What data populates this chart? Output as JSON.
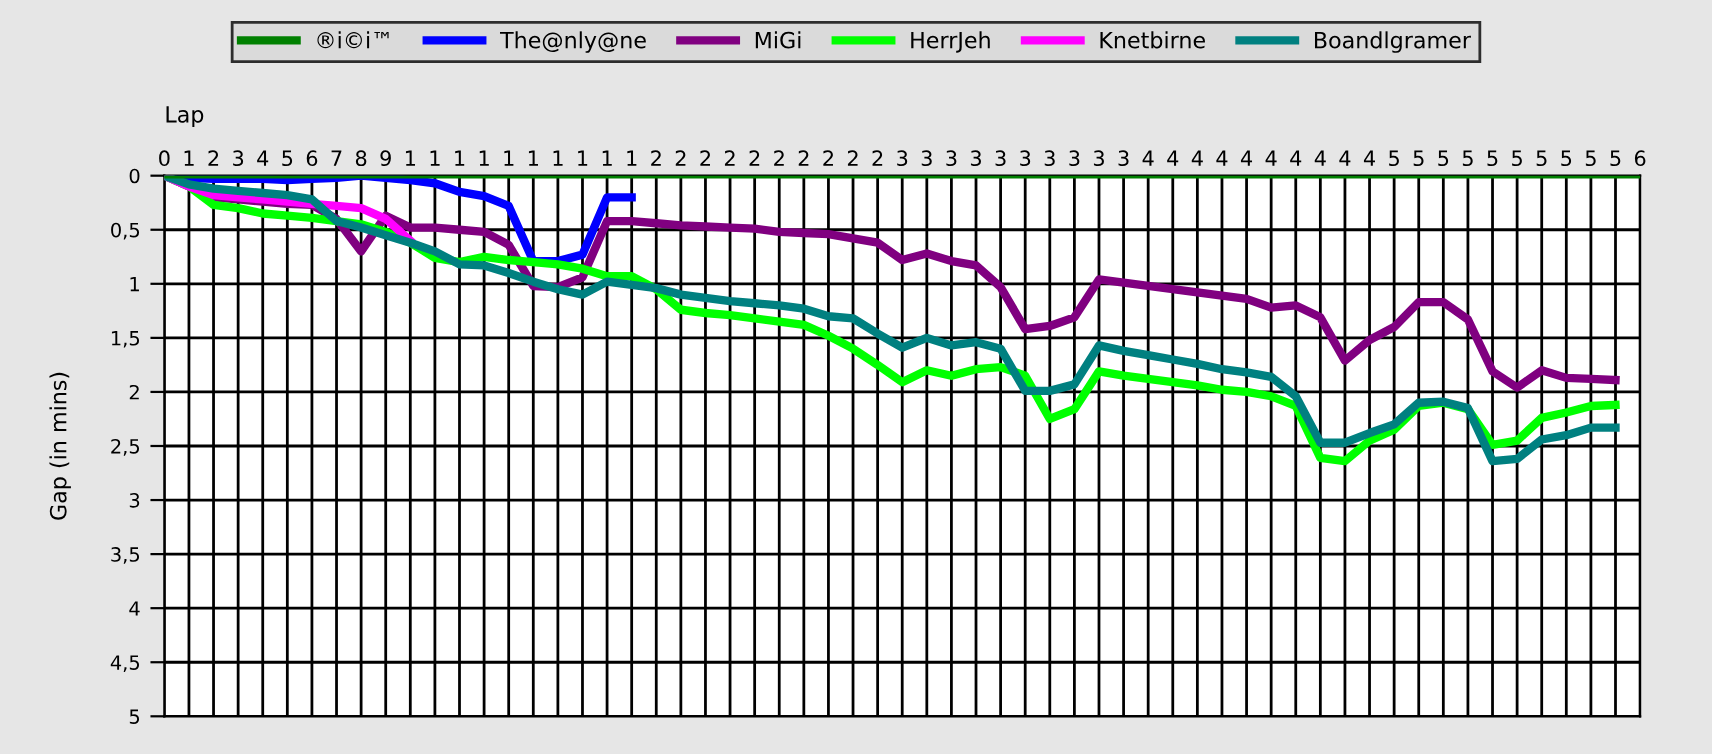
{
  "chart_data": {
    "type": "line",
    "xlabel": "Lap",
    "ylabel": "Gap (in mins)",
    "legend": "top",
    "grid": true,
    "marker": "none",
    "line_style": "solid",
    "ylim": [
      5,
      0
    ],
    "categories": [
      "0",
      "1",
      "2",
      "3",
      "4",
      "5",
      "6",
      "7",
      "8",
      "9",
      "1",
      "1",
      "1",
      "1",
      "1",
      "1",
      "1",
      "1",
      "1",
      "1",
      "2",
      "2",
      "2",
      "2",
      "2",
      "2",
      "2",
      "2",
      "2",
      "2",
      "3",
      "3",
      "3",
      "3",
      "3",
      "3",
      "3",
      "3",
      "3",
      "3",
      "4",
      "4",
      "4",
      "4",
      "4",
      "4",
      "4",
      "4",
      "4",
      "4",
      "5",
      "5",
      "5",
      "5",
      "5",
      "5",
      "5",
      "5",
      "5",
      "5",
      "6"
    ],
    "yticks": [
      0,
      {
        "value": 0.5,
        "label": "0,5"
      },
      1,
      {
        "value": 1.5,
        "label": "1,5"
      },
      2,
      {
        "value": 2.5,
        "label": "2,5"
      },
      3,
      {
        "value": 3.5,
        "label": "3,5"
      },
      4,
      {
        "value": 4.5,
        "label": "4,5"
      },
      5
    ],
    "series": [
      {
        "name": "®i©i™",
        "color": "#008000",
        "values": [
          0,
          0,
          0,
          0,
          0,
          0,
          0,
          0,
          0,
          0,
          0,
          0,
          0,
          0,
          0,
          0,
          0,
          0,
          0,
          0,
          0,
          0,
          0,
          0,
          0,
          0,
          0,
          0,
          0,
          0,
          0,
          0,
          0,
          0,
          0,
          0,
          0,
          0,
          0,
          0,
          0,
          0,
          0,
          0,
          0,
          0,
          0,
          0,
          0,
          0,
          0,
          0,
          0,
          0,
          0,
          0,
          0,
          0,
          0,
          0,
          0
        ]
      },
      {
        "name": "The@nly@ne",
        "color": "#0000ff",
        "values": [
          0,
          0.02,
          0.03,
          0.03,
          0.03,
          0.04,
          0.03,
          0.02,
          0,
          0.02,
          0.04,
          0.07,
          0.15,
          0.19,
          0.28,
          0.79,
          0.79,
          0.73,
          0.2,
          0.2,
          null,
          null,
          null,
          null,
          null,
          null,
          null,
          null,
          null,
          null,
          null,
          null,
          null,
          null,
          null,
          null,
          null,
          null,
          null,
          null,
          null,
          null,
          null,
          null,
          null,
          null,
          null,
          null,
          null,
          null,
          null,
          null,
          null,
          null,
          null,
          null,
          null,
          null,
          null,
          null,
          null
        ]
      },
      {
        "name": "MiGi",
        "color": "#800080",
        "values": [
          0,
          0.1,
          0.2,
          0.22,
          0.24,
          0.26,
          0.27,
          0.4,
          0.7,
          0.37,
          0.48,
          0.48,
          0.5,
          0.52,
          0.64,
          1.02,
          1.03,
          0.94,
          0.42,
          0.42,
          0.44,
          0.46,
          0.47,
          0.48,
          0.49,
          0.52,
          0.53,
          0.54,
          0.58,
          0.62,
          0.78,
          0.72,
          0.79,
          0.83,
          1.03,
          1.42,
          1.39,
          1.31,
          0.96,
          0.99,
          1.02,
          1.05,
          1.08,
          1.11,
          1.14,
          1.22,
          1.2,
          1.31,
          1.71,
          1.52,
          1.4,
          1.17,
          1.17,
          1.33,
          1.81,
          1.96,
          1.8,
          1.87,
          1.88,
          1.89,
          null
        ]
      },
      {
        "name": "HerrJeh",
        "color": "#00ff00",
        "values": [
          0,
          0.1,
          0.27,
          0.3,
          0.35,
          0.37,
          0.39,
          0.42,
          0.45,
          0.52,
          0.62,
          0.76,
          0.8,
          0.75,
          0.78,
          0.8,
          0.82,
          0.86,
          0.93,
          0.93,
          1.05,
          1.24,
          1.27,
          1.29,
          1.32,
          1.35,
          1.38,
          1.48,
          1.6,
          1.75,
          1.91,
          1.8,
          1.85,
          1.79,
          1.77,
          1.85,
          2.25,
          2.16,
          1.81,
          1.85,
          1.88,
          1.91,
          1.94,
          1.98,
          2.0,
          2.04,
          2.13,
          2.61,
          2.64,
          2.45,
          2.35,
          2.13,
          2.1,
          2.16,
          2.49,
          2.45,
          2.24,
          2.19,
          2.13,
          2.12,
          null
        ]
      },
      {
        "name": "Knetbirne",
        "color": "#ff00ff",
        "values": [
          0,
          0.1,
          0.18,
          0.2,
          0.22,
          0.24,
          0.26,
          0.28,
          0.3,
          0.4,
          0.6,
          null,
          null,
          null,
          null,
          null,
          null,
          null,
          null,
          null,
          null,
          null,
          null,
          null,
          null,
          null,
          null,
          null,
          null,
          null,
          null,
          null,
          null,
          null,
          null,
          null,
          null,
          null,
          null,
          null,
          null,
          null,
          null,
          null,
          null,
          null,
          null,
          null,
          null,
          null,
          null,
          null,
          null,
          null,
          null,
          null,
          null,
          null,
          null,
          null,
          null
        ]
      },
      {
        "name": "Boandlgramer",
        "color": "#008080",
        "values": [
          0,
          0.08,
          0.12,
          0.14,
          0.16,
          0.18,
          0.22,
          0.42,
          0.48,
          0.55,
          0.62,
          0.7,
          0.82,
          0.83,
          0.9,
          0.98,
          1.05,
          1.1,
          0.98,
          1.01,
          1.04,
          1.1,
          1.13,
          1.16,
          1.18,
          1.2,
          1.23,
          1.3,
          1.32,
          1.46,
          1.59,
          1.5,
          1.57,
          1.54,
          1.6,
          1.99,
          1.99,
          1.93,
          1.57,
          1.62,
          1.66,
          1.7,
          1.74,
          1.79,
          1.82,
          1.86,
          2.04,
          2.47,
          2.47,
          2.38,
          2.3,
          2.1,
          2.09,
          2.15,
          2.64,
          2.62,
          2.44,
          2.4,
          2.33,
          2.33,
          null
        ]
      }
    ]
  }
}
